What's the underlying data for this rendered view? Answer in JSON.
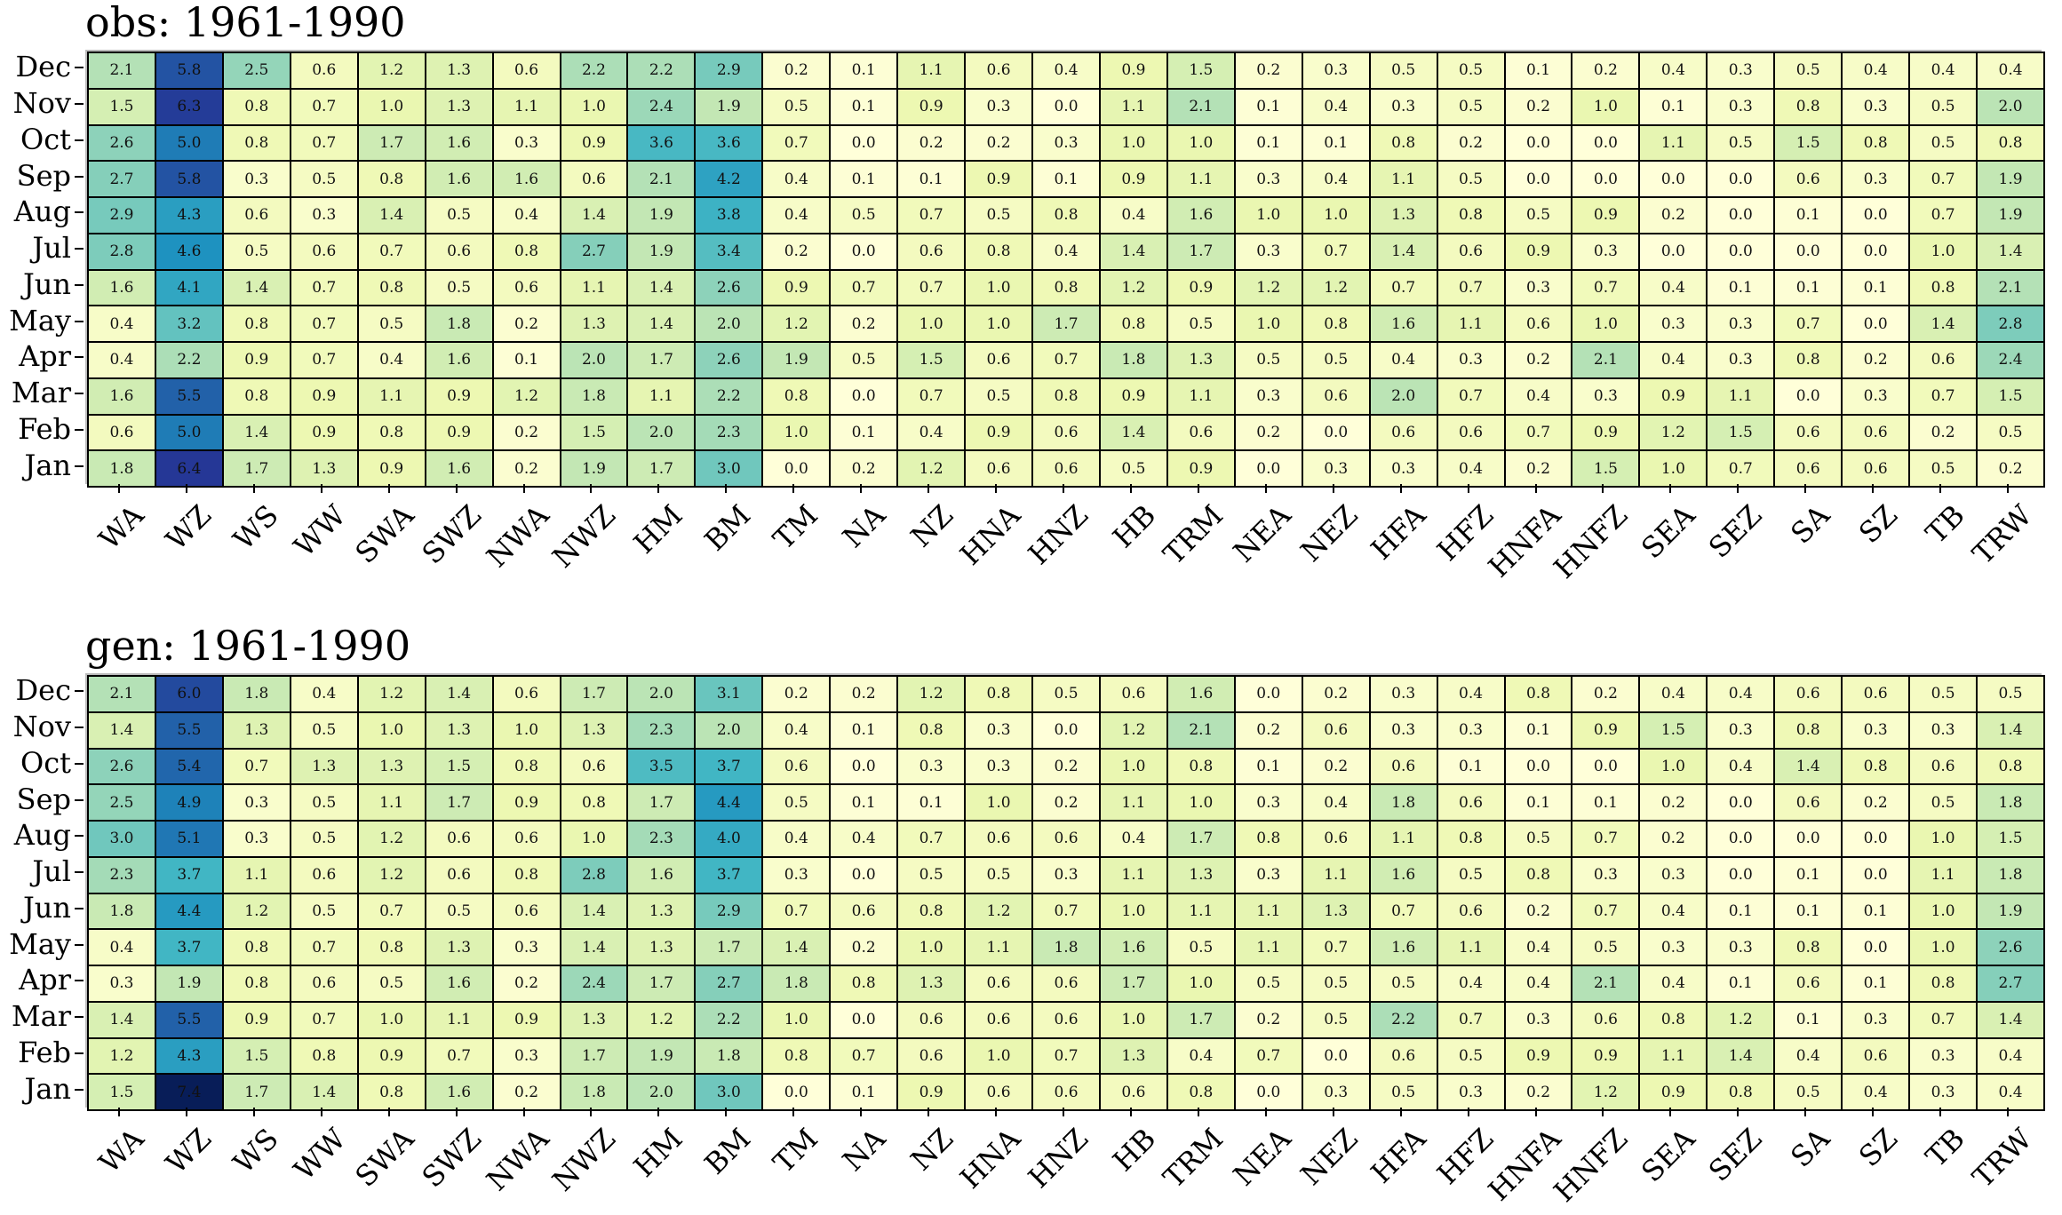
{
  "chart_data": [
    {
      "type": "heatmap",
      "title": "obs: 1961-1990",
      "colormap": "YlGnBu",
      "vmin": 0,
      "vmax": 7.4,
      "xlabels": [
        "WA",
        "WZ",
        "WS",
        "WW",
        "SWA",
        "SWZ",
        "NWA",
        "NWZ",
        "HM",
        "BM",
        "TM",
        "NA",
        "NZ",
        "HNA",
        "HNZ",
        "HB",
        "TRM",
        "NEA",
        "NEZ",
        "HFA",
        "HFZ",
        "HNFA",
        "HNFZ",
        "SEA",
        "SEZ",
        "SA",
        "SZ",
        "TB",
        "TRW"
      ],
      "ylabels": [
        "Dec",
        "Nov",
        "Oct",
        "Sep",
        "Aug",
        "Jul",
        "Jun",
        "May",
        "Apr",
        "Mar",
        "Feb",
        "Jan"
      ],
      "values": [
        [
          "2.1",
          "5.8",
          "2.5",
          "0.6",
          "1.2",
          "1.3",
          "0.6",
          "2.2",
          "2.2",
          "2.9",
          "0.2",
          "0.1",
          "1.1",
          "0.6",
          "0.4",
          "0.9",
          "1.5",
          "0.2",
          "0.3",
          "0.5",
          "0.5",
          "0.1",
          "0.2",
          "0.4",
          "0.3",
          "0.5",
          "0.4",
          "0.4",
          "0.4"
        ],
        [
          "1.5",
          "6.3",
          "0.8",
          "0.7",
          "1.0",
          "1.3",
          "1.1",
          "1.0",
          "2.4",
          "1.9",
          "0.5",
          "0.1",
          "0.9",
          "0.3",
          "0.0",
          "1.1",
          "2.1",
          "0.1",
          "0.4",
          "0.3",
          "0.5",
          "0.2",
          "1.0",
          "0.1",
          "0.3",
          "0.8",
          "0.3",
          "0.5",
          "2.0"
        ],
        [
          "2.6",
          "5.0",
          "0.8",
          "0.7",
          "1.7",
          "1.6",
          "0.3",
          "0.9",
          "3.6",
          "3.6",
          "0.7",
          "0.0",
          "0.2",
          "0.2",
          "0.3",
          "1.0",
          "1.0",
          "0.1",
          "0.1",
          "0.8",
          "0.2",
          "0.0",
          "0.0",
          "1.1",
          "0.5",
          "1.5",
          "0.8",
          "0.5",
          "0.8"
        ],
        [
          "2.7",
          "5.8",
          "0.3",
          "0.5",
          "0.8",
          "1.6",
          "1.6",
          "0.6",
          "2.1",
          "4.2",
          "0.4",
          "0.1",
          "0.1",
          "0.9",
          "0.1",
          "0.9",
          "1.1",
          "0.3",
          "0.4",
          "1.1",
          "0.5",
          "0.0",
          "0.0",
          "0.0",
          "0.0",
          "0.6",
          "0.3",
          "0.7",
          "1.9"
        ],
        [
          "2.9",
          "4.3",
          "0.6",
          "0.3",
          "1.4",
          "0.5",
          "0.4",
          "1.4",
          "1.9",
          "3.8",
          "0.4",
          "0.5",
          "0.7",
          "0.5",
          "0.8",
          "0.4",
          "1.6",
          "1.0",
          "1.0",
          "1.3",
          "0.8",
          "0.5",
          "0.9",
          "0.2",
          "0.0",
          "0.1",
          "0.0",
          "0.7",
          "1.9"
        ],
        [
          "2.8",
          "4.6",
          "0.5",
          "0.6",
          "0.7",
          "0.6",
          "0.8",
          "2.7",
          "1.9",
          "3.4",
          "0.2",
          "0.0",
          "0.6",
          "0.8",
          "0.4",
          "1.4",
          "1.7",
          "0.3",
          "0.7",
          "1.4",
          "0.6",
          "0.9",
          "0.3",
          "0.0",
          "0.0",
          "0.0",
          "0.0",
          "1.0",
          "1.4"
        ],
        [
          "1.6",
          "4.1",
          "1.4",
          "0.7",
          "0.8",
          "0.5",
          "0.6",
          "1.1",
          "1.4",
          "2.6",
          "0.9",
          "0.7",
          "0.7",
          "1.0",
          "0.8",
          "1.2",
          "0.9",
          "1.2",
          "1.2",
          "0.7",
          "0.7",
          "0.3",
          "0.7",
          "0.4",
          "0.1",
          "0.1",
          "0.1",
          "0.8",
          "2.1"
        ],
        [
          "0.4",
          "3.2",
          "0.8",
          "0.7",
          "0.5",
          "1.8",
          "0.2",
          "1.3",
          "1.4",
          "2.0",
          "1.2",
          "0.2",
          "1.0",
          "1.0",
          "1.7",
          "0.8",
          "0.5",
          "1.0",
          "0.8",
          "1.6",
          "1.1",
          "0.6",
          "1.0",
          "0.3",
          "0.3",
          "0.7",
          "0.0",
          "1.4",
          "2.8"
        ],
        [
          "0.4",
          "2.2",
          "0.9",
          "0.7",
          "0.4",
          "1.6",
          "0.1",
          "2.0",
          "1.7",
          "2.6",
          "1.9",
          "0.5",
          "1.5",
          "0.6",
          "0.7",
          "1.8",
          "1.3",
          "0.5",
          "0.5",
          "0.4",
          "0.3",
          "0.2",
          "2.1",
          "0.4",
          "0.3",
          "0.8",
          "0.2",
          "0.6",
          "2.4"
        ],
        [
          "1.6",
          "5.5",
          "0.8",
          "0.9",
          "1.1",
          "0.9",
          "1.2",
          "1.8",
          "1.1",
          "2.2",
          "0.8",
          "0.0",
          "0.7",
          "0.5",
          "0.8",
          "0.9",
          "1.1",
          "0.3",
          "0.6",
          "2.0",
          "0.7",
          "0.4",
          "0.3",
          "0.9",
          "1.1",
          "0.0",
          "0.3",
          "0.7",
          "1.5"
        ],
        [
          "0.6",
          "5.0",
          "1.4",
          "0.9",
          "0.8",
          "0.9",
          "0.2",
          "1.5",
          "2.0",
          "2.3",
          "1.0",
          "0.1",
          "0.4",
          "0.9",
          "0.6",
          "1.4",
          "0.6",
          "0.2",
          "0.0",
          "0.6",
          "0.6",
          "0.7",
          "0.9",
          "1.2",
          "1.5",
          "0.6",
          "0.6",
          "0.2",
          "0.5"
        ],
        [
          "1.8",
          "6.4",
          "1.7",
          "1.3",
          "0.9",
          "1.6",
          "0.2",
          "1.9",
          "1.7",
          "3.0",
          "0.0",
          "0.2",
          "1.2",
          "0.6",
          "0.6",
          "0.5",
          "0.9",
          "0.0",
          "0.3",
          "0.3",
          "0.4",
          "0.2",
          "1.5",
          "1.0",
          "0.7",
          "0.6",
          "0.6",
          "0.5",
          "0.2"
        ]
      ]
    },
    {
      "type": "heatmap",
      "title": "gen: 1961-1990",
      "colormap": "YlGnBu",
      "vmin": 0,
      "vmax": 7.4,
      "xlabels": [
        "WA",
        "WZ",
        "WS",
        "WW",
        "SWA",
        "SWZ",
        "NWA",
        "NWZ",
        "HM",
        "BM",
        "TM",
        "NA",
        "NZ",
        "HNA",
        "HNZ",
        "HB",
        "TRM",
        "NEA",
        "NEZ",
        "HFA",
        "HFZ",
        "HNFA",
        "HNFZ",
        "SEA",
        "SEZ",
        "SA",
        "SZ",
        "TB",
        "TRW"
      ],
      "ylabels": [
        "Dec",
        "Nov",
        "Oct",
        "Sep",
        "Aug",
        "Jul",
        "Jun",
        "May",
        "Apr",
        "Mar",
        "Feb",
        "Jan"
      ],
      "values": [
        [
          "2.1",
          "6.0",
          "1.8",
          "0.4",
          "1.2",
          "1.4",
          "0.6",
          "1.7",
          "2.0",
          "3.1",
          "0.2",
          "0.2",
          "1.2",
          "0.8",
          "0.5",
          "0.6",
          "1.6",
          "0.0",
          "0.2",
          "0.3",
          "0.4",
          "0.8",
          "0.2",
          "0.4",
          "0.4",
          "0.6",
          "0.6",
          "0.5",
          "0.5"
        ],
        [
          "1.4",
          "5.5",
          "1.3",
          "0.5",
          "1.0",
          "1.3",
          "1.0",
          "1.3",
          "2.3",
          "2.0",
          "0.4",
          "0.1",
          "0.8",
          "0.3",
          "0.0",
          "1.2",
          "2.1",
          "0.2",
          "0.6",
          "0.3",
          "0.3",
          "0.1",
          "0.9",
          "1.5",
          "0.3",
          "0.8",
          "0.3",
          "0.3",
          "1.4"
        ],
        [
          "2.6",
          "5.4",
          "0.7",
          "1.3",
          "1.3",
          "1.5",
          "0.8",
          "0.6",
          "3.5",
          "3.7",
          "0.6",
          "0.0",
          "0.3",
          "0.3",
          "0.2",
          "1.0",
          "0.8",
          "0.1",
          "0.2",
          "0.6",
          "0.1",
          "0.0",
          "0.0",
          "1.0",
          "0.4",
          "1.4",
          "0.8",
          "0.6",
          "0.8"
        ],
        [
          "2.5",
          "4.9",
          "0.3",
          "0.5",
          "1.1",
          "1.7",
          "0.9",
          "0.8",
          "1.7",
          "4.4",
          "0.5",
          "0.1",
          "0.1",
          "1.0",
          "0.2",
          "1.1",
          "1.0",
          "0.3",
          "0.4",
          "1.8",
          "0.6",
          "0.1",
          "0.1",
          "0.2",
          "0.0",
          "0.6",
          "0.2",
          "0.5",
          "1.8"
        ],
        [
          "3.0",
          "5.1",
          "0.3",
          "0.5",
          "1.2",
          "0.6",
          "0.6",
          "1.0",
          "2.3",
          "4.0",
          "0.4",
          "0.4",
          "0.7",
          "0.6",
          "0.6",
          "0.4",
          "1.7",
          "0.8",
          "0.6",
          "1.1",
          "0.8",
          "0.5",
          "0.7",
          "0.2",
          "0.0",
          "0.0",
          "0.0",
          "1.0",
          "1.5"
        ],
        [
          "2.3",
          "3.7",
          "1.1",
          "0.6",
          "1.2",
          "0.6",
          "0.8",
          "2.8",
          "1.6",
          "3.7",
          "0.3",
          "0.0",
          "0.5",
          "0.5",
          "0.3",
          "1.1",
          "1.3",
          "0.3",
          "1.1",
          "1.6",
          "0.5",
          "0.8",
          "0.3",
          "0.3",
          "0.0",
          "0.1",
          "0.0",
          "1.1",
          "1.8"
        ],
        [
          "1.8",
          "4.4",
          "1.2",
          "0.5",
          "0.7",
          "0.5",
          "0.6",
          "1.4",
          "1.3",
          "2.9",
          "0.7",
          "0.6",
          "0.8",
          "1.2",
          "0.7",
          "1.0",
          "1.1",
          "1.1",
          "1.3",
          "0.7",
          "0.6",
          "0.2",
          "0.7",
          "0.4",
          "0.1",
          "0.1",
          "0.1",
          "1.0",
          "1.9"
        ],
        [
          "0.4",
          "3.7",
          "0.8",
          "0.7",
          "0.8",
          "1.3",
          "0.3",
          "1.4",
          "1.3",
          "1.7",
          "1.4",
          "0.2",
          "1.0",
          "1.1",
          "1.8",
          "1.6",
          "0.5",
          "1.1",
          "0.7",
          "1.6",
          "1.1",
          "0.4",
          "0.5",
          "0.3",
          "0.3",
          "0.8",
          "0.0",
          "1.0",
          "2.6"
        ],
        [
          "0.3",
          "1.9",
          "0.8",
          "0.6",
          "0.5",
          "1.6",
          "0.2",
          "2.4",
          "1.7",
          "2.7",
          "1.8",
          "0.8",
          "1.3",
          "0.6",
          "0.6",
          "1.7",
          "1.0",
          "0.5",
          "0.5",
          "0.5",
          "0.4",
          "0.4",
          "2.1",
          "0.4",
          "0.1",
          "0.6",
          "0.1",
          "0.8",
          "2.7"
        ],
        [
          "1.4",
          "5.5",
          "0.9",
          "0.7",
          "1.0",
          "1.1",
          "0.9",
          "1.3",
          "1.2",
          "2.2",
          "1.0",
          "0.0",
          "0.6",
          "0.6",
          "0.6",
          "1.0",
          "1.7",
          "0.2",
          "0.5",
          "2.2",
          "0.7",
          "0.3",
          "0.6",
          "0.8",
          "1.2",
          "0.1",
          "0.3",
          "0.7",
          "1.4"
        ],
        [
          "1.2",
          "4.3",
          "1.5",
          "0.8",
          "0.9",
          "0.7",
          "0.3",
          "1.7",
          "1.9",
          "1.8",
          "0.8",
          "0.7",
          "0.6",
          "1.0",
          "0.7",
          "1.3",
          "0.4",
          "0.7",
          "0.0",
          "0.6",
          "0.5",
          "0.9",
          "0.9",
          "1.1",
          "1.4",
          "0.4",
          "0.6",
          "0.3",
          "0.4"
        ],
        [
          "1.5",
          "7.4",
          "1.7",
          "1.4",
          "0.8",
          "1.6",
          "0.2",
          "1.8",
          "2.0",
          "3.0",
          "0.0",
          "0.1",
          "0.9",
          "0.6",
          "0.6",
          "0.6",
          "0.8",
          "0.0",
          "0.3",
          "0.5",
          "0.3",
          "0.2",
          "1.2",
          "0.9",
          "0.8",
          "0.5",
          "0.4",
          "0.3",
          "0.4"
        ]
      ]
    }
  ]
}
